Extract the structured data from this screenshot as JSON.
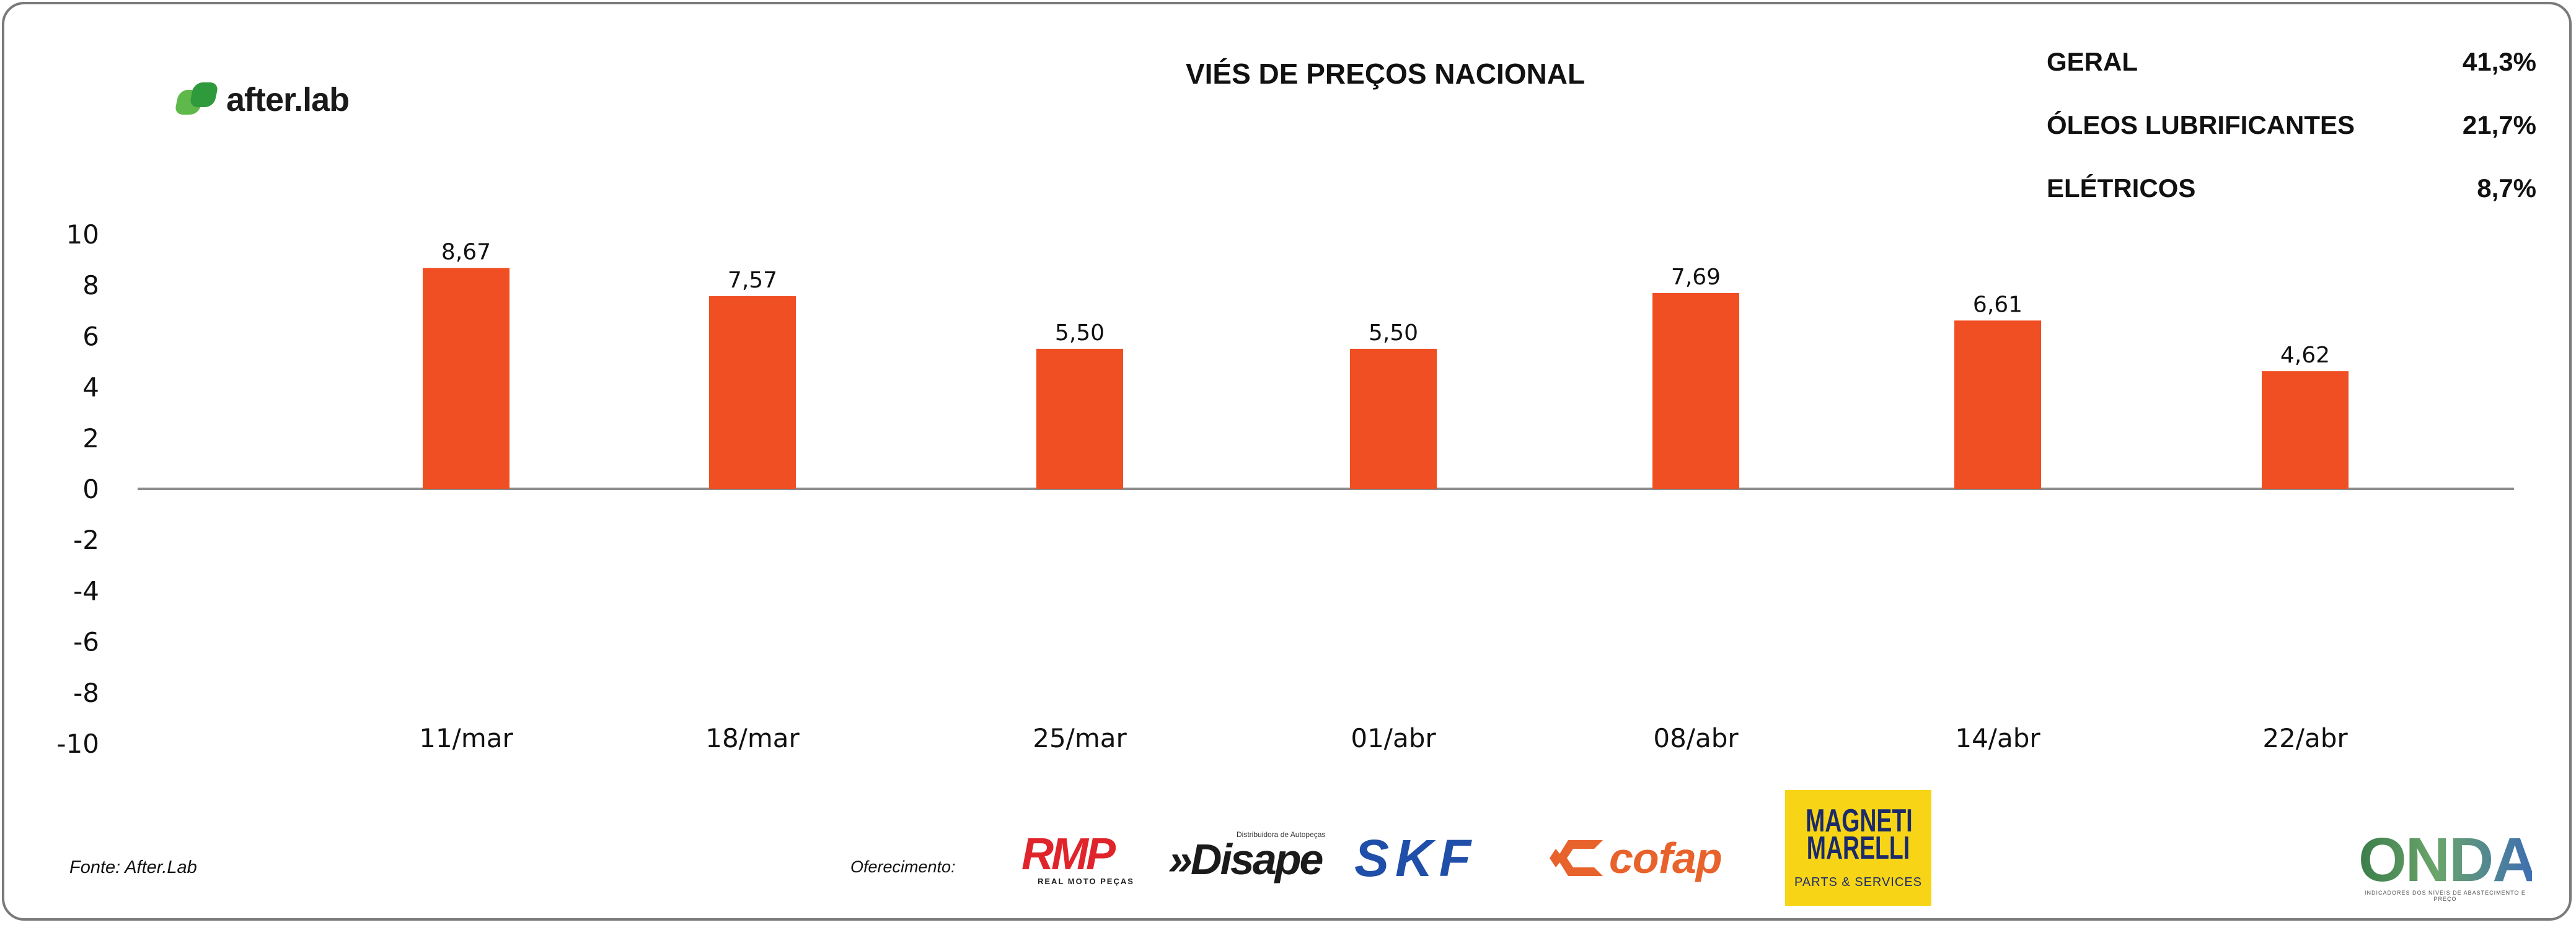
{
  "brand": {
    "logo_text": "after.lab"
  },
  "title": "VIÉS DE PREÇOS NACIONAL",
  "summary": [
    {
      "label": "GERAL",
      "value": "41,3%"
    },
    {
      "label": "ÓLEOS LUBRIFICANTES",
      "value": "21,7%"
    },
    {
      "label": "ELÉTRICOS",
      "value": "8,7%"
    }
  ],
  "chart_data": {
    "type": "bar",
    "categories": [
      "11/mar",
      "18/mar",
      "25/mar",
      "01/abr",
      "08/abr",
      "14/abr",
      "22/abr"
    ],
    "values": [
      8.67,
      7.57,
      5.5,
      5.5,
      7.69,
      6.61,
      4.62
    ],
    "value_labels": [
      "8,67",
      "7,57",
      "5,50",
      "5,50",
      "7,69",
      "6,61",
      "4,62"
    ],
    "y_ticks": [
      "10",
      "8",
      "6",
      "4",
      "2",
      "0",
      "-2",
      "-4",
      "-6",
      "-8",
      "-10"
    ],
    "ylim": [
      -10,
      10
    ],
    "grid": false,
    "legend": "none",
    "bar_color": "#f04e23",
    "axis_color": "#8c8c8c"
  },
  "footer": {
    "source": "Fonte: After.Lab",
    "sponsor_label": "Oferecimento:"
  },
  "sponsors": {
    "rmp": {
      "word": "RMP",
      "sub": "REAL MOTO PEÇAS"
    },
    "disape": {
      "word": "»Disape",
      "sub": "Distribuidora de Autopeças"
    },
    "skf": {
      "word": "SKF"
    },
    "cofap": {
      "word": "cofap"
    },
    "magneti": {
      "word": "MAGNETI MARELLI",
      "sub": "PARTS & SERVICES"
    },
    "onda": {
      "word": "ONDA",
      "sub": "INDICADORES DOS NÍVEIS DE ABASTECIMENTO E PREÇO"
    }
  }
}
